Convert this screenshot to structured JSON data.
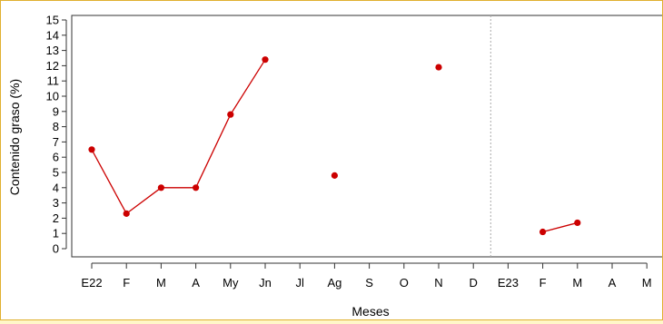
{
  "chart_data": {
    "type": "line",
    "title": "",
    "xlabel": "Meses",
    "ylabel": "Contenido graso (%)",
    "categories": [
      "E22",
      "F",
      "M",
      "A",
      "My",
      "Jn",
      "Jl",
      "Ag",
      "S",
      "O",
      "N",
      "D",
      "E23",
      "F",
      "M",
      "A",
      "M"
    ],
    "ylim": [
      0,
      15
    ],
    "yticks": [
      0,
      1,
      2,
      3,
      4,
      5,
      6,
      7,
      8,
      9,
      10,
      11,
      12,
      13,
      14,
      15
    ],
    "grid": false,
    "legend": "none",
    "series": [
      {
        "values": [
          6.5,
          2.3,
          4.0,
          4.0,
          8.8,
          12.4,
          null,
          4.8,
          null,
          null,
          11.9,
          null,
          null,
          1.1,
          1.7,
          null,
          null
        ],
        "color": "#cc0000"
      }
    ],
    "separator_after_category_index": 11,
    "separator_color": "#aaaaaa"
  }
}
